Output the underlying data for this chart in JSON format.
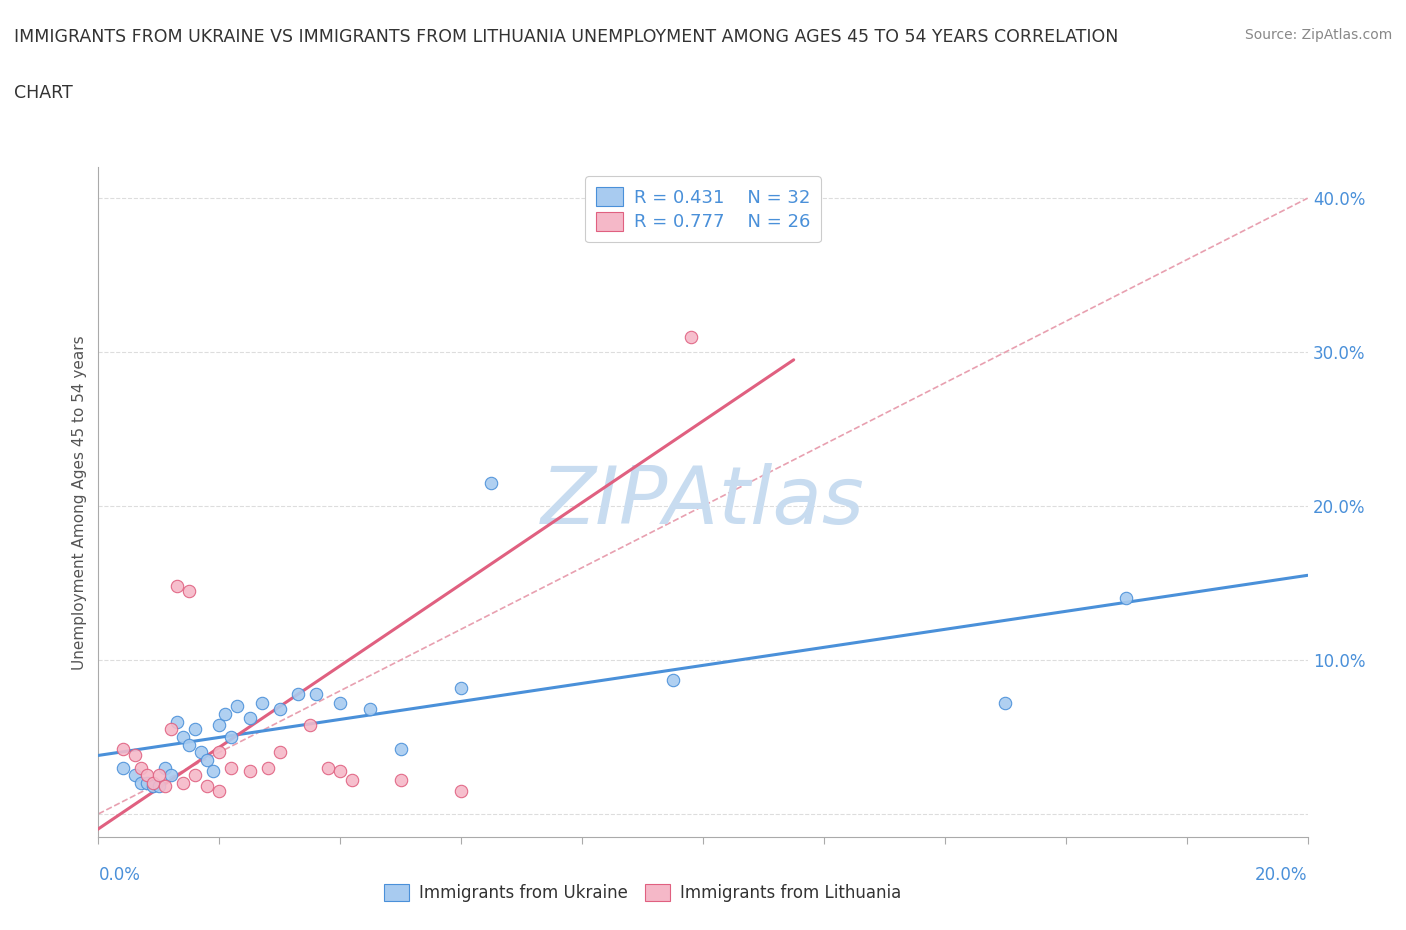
{
  "title_line1": "IMMIGRANTS FROM UKRAINE VS IMMIGRANTS FROM LITHUANIA UNEMPLOYMENT AMONG AGES 45 TO 54 YEARS CORRELATION",
  "title_line2": "CHART",
  "source_text": "Source: ZipAtlas.com",
  "ylabel": "Unemployment Among Ages 45 to 54 years",
  "xlim": [
    0.0,
    0.2
  ],
  "ylim": [
    -0.015,
    0.42
  ],
  "ukraine_color": "#A8CBF0",
  "ukraine_color_dark": "#4A90D9",
  "lithuania_color": "#F5B8C8",
  "lithuania_color_dark": "#E06080",
  "watermark_color": "#C8DCF0",
  "legend_r1": "R = 0.431",
  "legend_n1": "N = 32",
  "legend_r2": "R = 0.777",
  "legend_n2": "N = 26",
  "ukraine_x": [
    0.004,
    0.006,
    0.007,
    0.008,
    0.009,
    0.01,
    0.011,
    0.012,
    0.013,
    0.014,
    0.015,
    0.016,
    0.017,
    0.018,
    0.019,
    0.02,
    0.021,
    0.022,
    0.023,
    0.025,
    0.027,
    0.03,
    0.033,
    0.036,
    0.04,
    0.045,
    0.05,
    0.06,
    0.065,
    0.095,
    0.15,
    0.17
  ],
  "ukraine_y": [
    0.03,
    0.025,
    0.02,
    0.02,
    0.018,
    0.018,
    0.03,
    0.025,
    0.06,
    0.05,
    0.045,
    0.055,
    0.04,
    0.035,
    0.028,
    0.058,
    0.065,
    0.05,
    0.07,
    0.062,
    0.072,
    0.068,
    0.078,
    0.078,
    0.072,
    0.068,
    0.042,
    0.082,
    0.215,
    0.087,
    0.072,
    0.14
  ],
  "lithuania_x": [
    0.004,
    0.006,
    0.007,
    0.008,
    0.009,
    0.01,
    0.011,
    0.012,
    0.013,
    0.015,
    0.016,
    0.018,
    0.02,
    0.022,
    0.025,
    0.028,
    0.03,
    0.035,
    0.038,
    0.04,
    0.042,
    0.05,
    0.06,
    0.098,
    0.014,
    0.02
  ],
  "lithuania_y": [
    0.042,
    0.038,
    0.03,
    0.025,
    0.02,
    0.025,
    0.018,
    0.055,
    0.148,
    0.145,
    0.025,
    0.018,
    0.04,
    0.03,
    0.028,
    0.03,
    0.04,
    0.058,
    0.03,
    0.028,
    0.022,
    0.022,
    0.015,
    0.31,
    0.02,
    0.015
  ],
  "ukraine_trend_x": [
    0.0,
    0.2
  ],
  "ukraine_trend_y": [
    0.038,
    0.155
  ],
  "lithuania_trend_x": [
    -0.002,
    0.115
  ],
  "lithuania_trend_y": [
    -0.015,
    0.295
  ],
  "ref_line_x": [
    0.0,
    0.2
  ],
  "ref_line_y": [
    0.0,
    0.4
  ],
  "yticks": [
    0.0,
    0.1,
    0.2,
    0.3,
    0.4
  ],
  "ytick_labels": [
    "",
    "10.0%",
    "20.0%",
    "30.0%",
    "40.0%"
  ],
  "xtick_positions": [
    0.0,
    0.02,
    0.04,
    0.06,
    0.08,
    0.1,
    0.12,
    0.14,
    0.16,
    0.18,
    0.2
  ],
  "grid_color": "#DDDDDD",
  "background_color": "#FFFFFF"
}
